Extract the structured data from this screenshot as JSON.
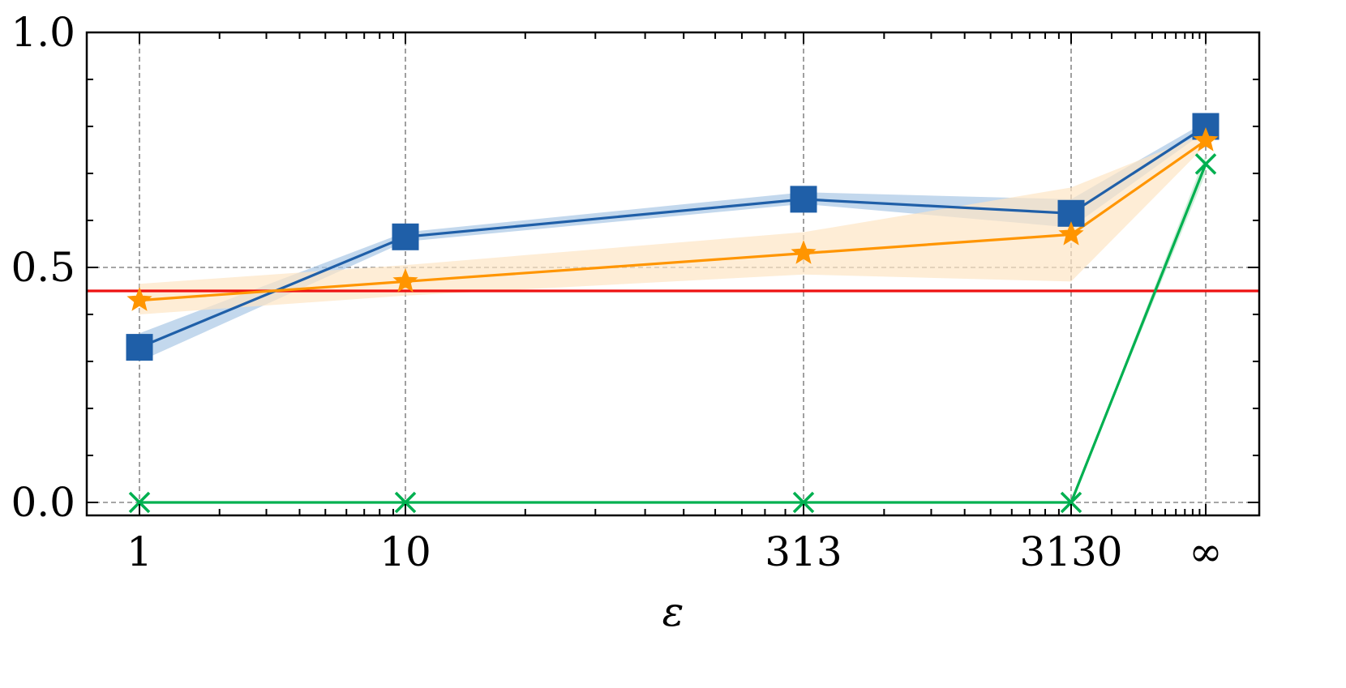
{
  "chart_data": {
    "type": "line",
    "xlabel": "ε",
    "ylabel": "",
    "title": "",
    "x_tick_labels": [
      "1",
      "10",
      "313",
      "3130",
      "∞"
    ],
    "y_tick_labels": [
      "0.0",
      "0.5",
      "1.0"
    ],
    "y_ticks": [
      0.0,
      0.5,
      1.0
    ],
    "ylim": [
      -0.03,
      1.0
    ],
    "grid": true,
    "reference_line": {
      "y": 0.45,
      "color": "#ee1111"
    },
    "series": [
      {
        "values": [
          0.33,
          0.565,
          0.645,
          0.615,
          0.8
        ],
        "lower": [
          0.3,
          0.555,
          0.635,
          0.585,
          0.79
        ],
        "upper": [
          0.36,
          0.575,
          0.66,
          0.645,
          0.81
        ],
        "color": "#1f5fa8",
        "band_color": "#a9c8e6",
        "marker": "square"
      },
      {
        "values": [
          0.43,
          0.47,
          0.53,
          0.57,
          0.77
        ],
        "lower": [
          0.4,
          0.44,
          0.485,
          0.47,
          0.76
        ],
        "upper": [
          0.465,
          0.505,
          0.575,
          0.67,
          0.785
        ],
        "color": "#ff9500",
        "band_color": "#fde6c4",
        "marker": "star"
      },
      {
        "values": [
          0.0,
          0.0,
          0.0,
          0.0,
          0.72
        ],
        "lower": [
          0.0,
          0.0,
          0.0,
          0.0,
          0.7
        ],
        "upper": [
          0.0,
          0.0,
          0.0,
          0.0,
          0.74
        ],
        "color": "#00b050",
        "band_color": "#bfe8cc",
        "marker": "x"
      }
    ]
  }
}
